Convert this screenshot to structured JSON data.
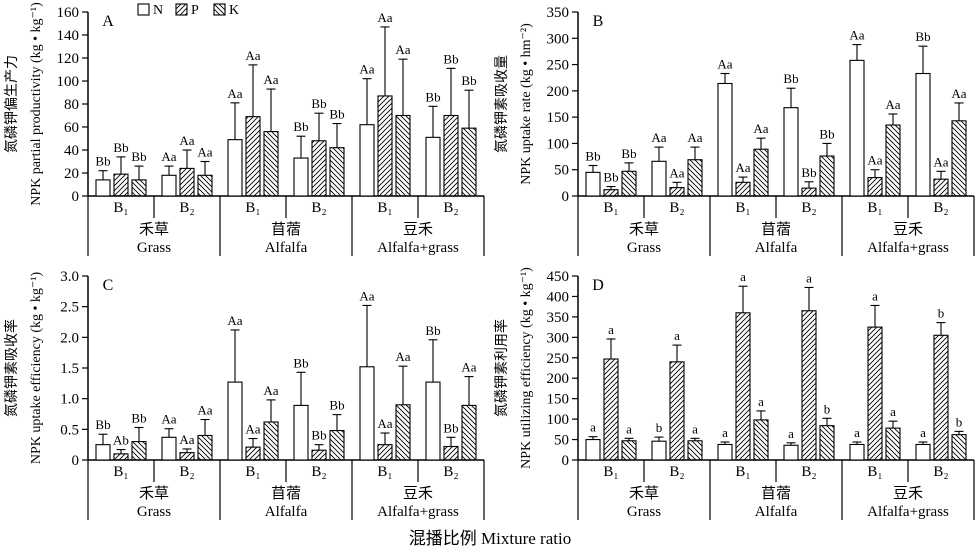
{
  "figure": {
    "xlabel": "混播比例 Mixture ratio",
    "series": [
      "N",
      "P",
      "K"
    ],
    "legend": [
      {
        "label": "N",
        "hatch": "none"
      },
      {
        "label": "P",
        "hatch": "forward"
      },
      {
        "label": "K",
        "hatch": "backward"
      }
    ],
    "colors": {
      "ink": "#000000",
      "background": "#ffffff"
    }
  },
  "chart_data": [
    {
      "type": "bar",
      "panel": "A",
      "show_legend": true,
      "ylabel_cn": "氮磷钾偏生产力",
      "ylabel_en": "NPK partial productivity (kg • kg⁻¹)",
      "ylim": [
        0,
        160
      ],
      "yticks": [
        "0",
        "20",
        "40",
        "60",
        "80",
        "100",
        "120",
        "140",
        "160"
      ],
      "groups": [
        {
          "cn": "禾草",
          "en": "Grass",
          "subgroups": [
            {
              "label": "B₁",
              "bars": [
                {
                  "series": "N",
                  "value": 14,
                  "err": 22,
                  "sig": "Bb"
                },
                {
                  "series": "P",
                  "value": 19,
                  "err": 34,
                  "sig": "Bb"
                },
                {
                  "series": "K",
                  "value": 14,
                  "err": 26,
                  "sig": "Bb"
                }
              ]
            },
            {
              "label": "B₂",
              "bars": [
                {
                  "series": "N",
                  "value": 18,
                  "err": 26,
                  "sig": "Aa"
                },
                {
                  "series": "P",
                  "value": 24,
                  "err": 40,
                  "sig": "Aa"
                },
                {
                  "series": "K",
                  "value": 18,
                  "err": 30,
                  "sig": "Aa"
                }
              ]
            }
          ]
        },
        {
          "cn": "苜蓿",
          "en": "Alfalfa",
          "subgroups": [
            {
              "label": "B₁",
              "bars": [
                {
                  "series": "N",
                  "value": 49,
                  "err": 81,
                  "sig": "Aa"
                },
                {
                  "series": "P",
                  "value": 69,
                  "err": 114,
                  "sig": "Aa"
                },
                {
                  "series": "K",
                  "value": 56,
                  "err": 93,
                  "sig": "Aa"
                }
              ]
            },
            {
              "label": "B₂",
              "bars": [
                {
                  "series": "N",
                  "value": 33,
                  "err": 52,
                  "sig": "Bb"
                },
                {
                  "series": "P",
                  "value": 48,
                  "err": 72,
                  "sig": "Bb"
                },
                {
                  "series": "K",
                  "value": 42,
                  "err": 63,
                  "sig": "Bb"
                }
              ]
            }
          ]
        },
        {
          "cn": "豆禾",
          "en": "Alfalfa+grass",
          "subgroups": [
            {
              "label": "B₁",
              "bars": [
                {
                  "series": "N",
                  "value": 62,
                  "err": 102,
                  "sig": "Aa"
                },
                {
                  "series": "P",
                  "value": 87,
                  "err": 147,
                  "sig": "Aa"
                },
                {
                  "series": "K",
                  "value": 70,
                  "err": 119,
                  "sig": "Aa"
                }
              ]
            },
            {
              "label": "B₂",
              "bars": [
                {
                  "series": "N",
                  "value": 51,
                  "err": 78,
                  "sig": "Bb"
                },
                {
                  "series": "P",
                  "value": 70,
                  "err": 111,
                  "sig": "Bb"
                },
                {
                  "series": "K",
                  "value": 59,
                  "err": 92,
                  "sig": "Bb"
                }
              ]
            }
          ]
        }
      ]
    },
    {
      "type": "bar",
      "panel": "B",
      "show_legend": false,
      "ylabel_cn": "氮磷钾素吸收量",
      "ylabel_en": "NPK uptake rate (kg • hm⁻²)",
      "ylim": [
        0,
        350
      ],
      "yticks": [
        "0",
        "50",
        "100",
        "150",
        "200",
        "250",
        "300",
        "350"
      ],
      "groups": [
        {
          "cn": "禾草",
          "en": "Grass",
          "subgroups": [
            {
              "label": "B₁",
              "bars": [
                {
                  "series": "N",
                  "value": 45,
                  "err": 58,
                  "sig": "Bb"
                },
                {
                  "series": "P",
                  "value": 12,
                  "err": 18,
                  "sig": "Bb"
                },
                {
                  "series": "K",
                  "value": 47,
                  "err": 63,
                  "sig": "Bb"
                }
              ]
            },
            {
              "label": "B₂",
              "bars": [
                {
                  "series": "N",
                  "value": 66,
                  "err": 93,
                  "sig": "Aa"
                },
                {
                  "series": "P",
                  "value": 16,
                  "err": 26,
                  "sig": "Aa"
                },
                {
                  "series": "K",
                  "value": 69,
                  "err": 93,
                  "sig": "Aa"
                }
              ]
            }
          ]
        },
        {
          "cn": "苜蓿",
          "en": "Alfalfa",
          "subgroups": [
            {
              "label": "B₁",
              "bars": [
                {
                  "series": "N",
                  "value": 214,
                  "err": 233,
                  "sig": "Aa"
                },
                {
                  "series": "P",
                  "value": 26,
                  "err": 36,
                  "sig": "Aa"
                },
                {
                  "series": "K",
                  "value": 89,
                  "err": 110,
                  "sig": "Aa"
                }
              ]
            },
            {
              "label": "B₂",
              "bars": [
                {
                  "series": "N",
                  "value": 168,
                  "err": 205,
                  "sig": "Bb"
                },
                {
                  "series": "P",
                  "value": 15,
                  "err": 27,
                  "sig": "Bb"
                },
                {
                  "series": "K",
                  "value": 76,
                  "err": 100,
                  "sig": "Bb"
                }
              ]
            }
          ]
        },
        {
          "cn": "豆禾",
          "en": "Alfalfa+grass",
          "subgroups": [
            {
              "label": "B₁",
              "bars": [
                {
                  "series": "N",
                  "value": 258,
                  "err": 288,
                  "sig": "Aa"
                },
                {
                  "series": "P",
                  "value": 35,
                  "err": 50,
                  "sig": "Aa"
                },
                {
                  "series": "K",
                  "value": 135,
                  "err": 156,
                  "sig": "Aa"
                }
              ]
            },
            {
              "label": "B₂",
              "bars": [
                {
                  "series": "N",
                  "value": 233,
                  "err": 285,
                  "sig": "Bb"
                },
                {
                  "series": "P",
                  "value": 32,
                  "err": 47,
                  "sig": "Aa"
                },
                {
                  "series": "K",
                  "value": 143,
                  "err": 177,
                  "sig": "Aa"
                }
              ]
            }
          ]
        }
      ]
    },
    {
      "type": "bar",
      "panel": "C",
      "show_legend": false,
      "ylabel_cn": "氮磷钾素吸收率",
      "ylabel_en": "NPK uptake efficiency (kg • kg⁻¹)",
      "ylim": [
        0,
        3.0
      ],
      "yticks": [
        "0",
        "0.5",
        "1.0",
        "1.5",
        "2.0",
        "2.5",
        "3.0"
      ],
      "groups": [
        {
          "cn": "禾草",
          "en": "Grass",
          "subgroups": [
            {
              "label": "B₁",
              "bars": [
                {
                  "series": "N",
                  "value": 0.25,
                  "err": 0.42,
                  "sig": "Bb"
                },
                {
                  "series": "P",
                  "value": 0.1,
                  "err": 0.17,
                  "sig": "Ab"
                },
                {
                  "series": "K",
                  "value": 0.3,
                  "err": 0.53,
                  "sig": "Bb"
                }
              ]
            },
            {
              "label": "B₂",
              "bars": [
                {
                  "series": "N",
                  "value": 0.37,
                  "err": 0.51,
                  "sig": "Aa"
                },
                {
                  "series": "P",
                  "value": 0.12,
                  "err": 0.18,
                  "sig": "Aa"
                },
                {
                  "series": "K",
                  "value": 0.4,
                  "err": 0.66,
                  "sig": "Aa"
                }
              ]
            }
          ]
        },
        {
          "cn": "苜蓿",
          "en": "Alfalfa",
          "subgroups": [
            {
              "label": "B₁",
              "bars": [
                {
                  "series": "N",
                  "value": 1.27,
                  "err": 2.12,
                  "sig": "Aa"
                },
                {
                  "series": "P",
                  "value": 0.21,
                  "err": 0.35,
                  "sig": "Aa"
                },
                {
                  "series": "K",
                  "value": 0.62,
                  "err": 0.98,
                  "sig": "Aa"
                }
              ]
            },
            {
              "label": "B₂",
              "bars": [
                {
                  "series": "N",
                  "value": 0.89,
                  "err": 1.43,
                  "sig": "Bb"
                },
                {
                  "series": "P",
                  "value": 0.16,
                  "err": 0.25,
                  "sig": "Bb"
                },
                {
                  "series": "K",
                  "value": 0.48,
                  "err": 0.74,
                  "sig": "Bb"
                }
              ]
            }
          ]
        },
        {
          "cn": "豆禾",
          "en": "Alfalfa+grass",
          "subgroups": [
            {
              "label": "B₁",
              "bars": [
                {
                  "series": "N",
                  "value": 1.52,
                  "err": 2.52,
                  "sig": "Aa"
                },
                {
                  "series": "P",
                  "value": 0.25,
                  "err": 0.44,
                  "sig": "Aa"
                },
                {
                  "series": "K",
                  "value": 0.9,
                  "err": 1.53,
                  "sig": "Aa"
                }
              ]
            },
            {
              "label": "B₂",
              "bars": [
                {
                  "series": "N",
                  "value": 1.27,
                  "err": 1.96,
                  "sig": "Bb"
                },
                {
                  "series": "P",
                  "value": 0.22,
                  "err": 0.37,
                  "sig": "Bb"
                },
                {
                  "series": "K",
                  "value": 0.89,
                  "err": 1.36,
                  "sig": "Aa"
                }
              ]
            }
          ]
        }
      ]
    },
    {
      "type": "bar",
      "panel": "D",
      "show_legend": false,
      "ylabel_cn": "氮磷钾素利用率",
      "ylabel_en": "NPK utilizing efficiency (kg • kg⁻¹)",
      "ylim": [
        0,
        450
      ],
      "yticks": [
        "0",
        "50",
        "100",
        "150",
        "200",
        "250",
        "300",
        "350",
        "400",
        "450"
      ],
      "groups": [
        {
          "cn": "禾草",
          "en": "Grass",
          "subgroups": [
            {
              "label": "B₁",
              "bars": [
                {
                  "series": "N",
                  "value": 50,
                  "err": 57,
                  "sig": "a"
                },
                {
                  "series": "P",
                  "value": 247,
                  "err": 296,
                  "sig": "a"
                },
                {
                  "series": "K",
                  "value": 47,
                  "err": 53,
                  "sig": "a"
                }
              ]
            },
            {
              "label": "B₂",
              "bars": [
                {
                  "series": "N",
                  "value": 46,
                  "err": 56,
                  "sig": "b"
                },
                {
                  "series": "P",
                  "value": 240,
                  "err": 281,
                  "sig": "a"
                },
                {
                  "series": "K",
                  "value": 47,
                  "err": 53,
                  "sig": "a"
                }
              ]
            }
          ]
        },
        {
          "cn": "苜蓿",
          "en": "Alfalfa",
          "subgroups": [
            {
              "label": "B₁",
              "bars": [
                {
                  "series": "N",
                  "value": 38,
                  "err": 44,
                  "sig": "a"
                },
                {
                  "series": "P",
                  "value": 360,
                  "err": 425,
                  "sig": "a"
                },
                {
                  "series": "K",
                  "value": 98,
                  "err": 120,
                  "sig": "a"
                }
              ]
            },
            {
              "label": "B₂",
              "bars": [
                {
                  "series": "N",
                  "value": 36,
                  "err": 42,
                  "sig": "a"
                },
                {
                  "series": "P",
                  "value": 365,
                  "err": 422,
                  "sig": "a"
                },
                {
                  "series": "K",
                  "value": 84,
                  "err": 102,
                  "sig": "b"
                }
              ]
            }
          ]
        },
        {
          "cn": "豆禾",
          "en": "Alfalfa+grass",
          "subgroups": [
            {
              "label": "B₁",
              "bars": [
                {
                  "series": "N",
                  "value": 38,
                  "err": 44,
                  "sig": "a"
                },
                {
                  "series": "P",
                  "value": 325,
                  "err": 378,
                  "sig": "a"
                },
                {
                  "series": "K",
                  "value": 78,
                  "err": 95,
                  "sig": "a"
                }
              ]
            },
            {
              "label": "B₂",
              "bars": [
                {
                  "series": "N",
                  "value": 38,
                  "err": 44,
                  "sig": "a"
                },
                {
                  "series": "P",
                  "value": 305,
                  "err": 336,
                  "sig": "b"
                },
                {
                  "series": "K",
                  "value": 62,
                  "err": 70,
                  "sig": "b"
                }
              ]
            }
          ]
        }
      ]
    }
  ]
}
